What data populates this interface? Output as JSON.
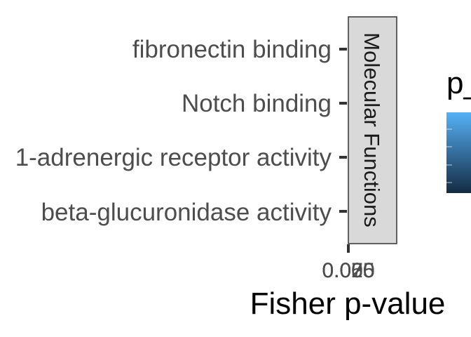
{
  "chart_data": {
    "type": "bar",
    "orientation": "horizontal",
    "categories": [
      "fibronectin binding",
      "Notch binding",
      "1-adrenergic receptor activity",
      "beta-glucuronidase activity"
    ],
    "values": [
      0,
      0,
      0,
      0
    ],
    "facet_label": "Molecular Functions",
    "xlabel": "Fisher p-value",
    "x_tick_labels": [
      "0.000",
      "0.025",
      "0.050",
      "0.075"
    ],
    "legend": {
      "title": "p_",
      "type": "colorbar",
      "colors": [
        "#56b1f7",
        "#132b43"
      ]
    },
    "grid": false,
    "legend_position": "right"
  }
}
